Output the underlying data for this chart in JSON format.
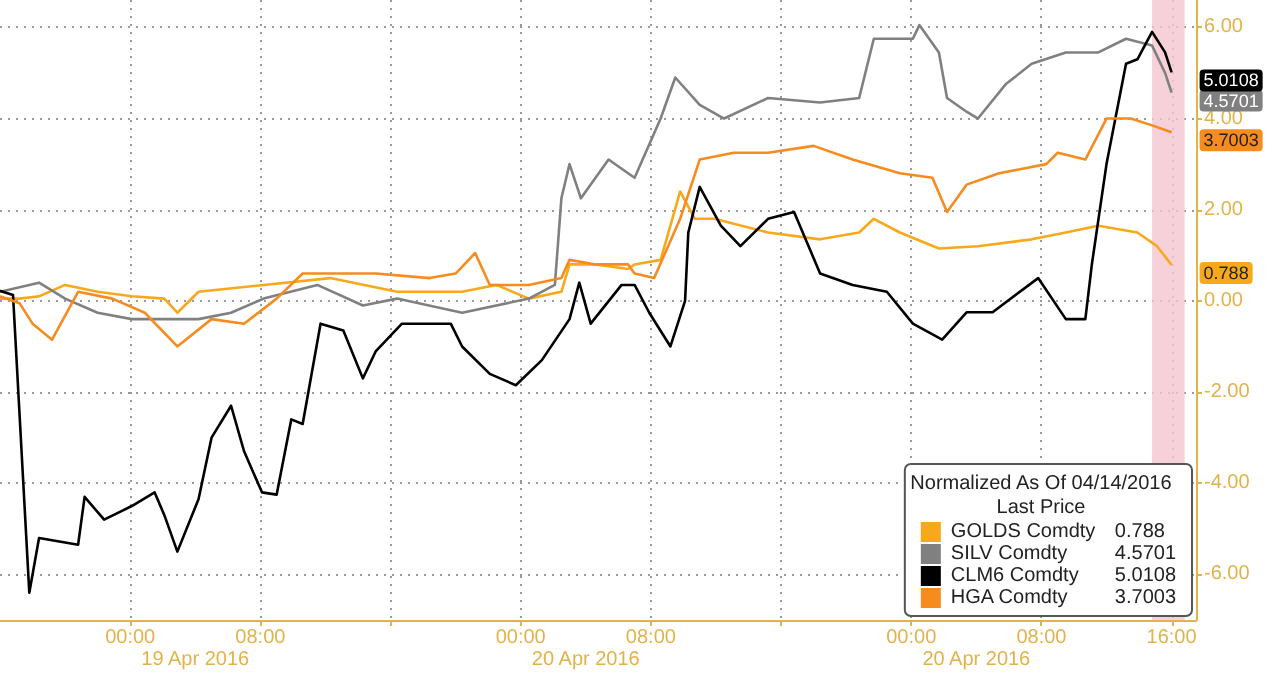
{
  "chart_data": {
    "type": "line",
    "legend_title": "Normalized As Of 04/14/2016\nLast Price",
    "legend": "bottom right",
    "grid": true,
    "annotations": [
      "19 Apr 2016",
      "20 Apr 2016",
      "20 Apr 2016"
    ],
    "xlim": [
      "2016-04-18T16:00",
      "2016-04-21T17:30"
    ],
    "xticks": [
      {
        "value": "2016-04-19T00:00",
        "label": "00:00"
      },
      {
        "value": "2016-04-19T08:00",
        "label": "08:00"
      },
      {
        "value": "2016-04-19T16:00",
        "label": null
      },
      {
        "value": "2016-04-20T00:00",
        "label": "00:00"
      },
      {
        "value": "2016-04-20T08:00",
        "label": "08:00"
      },
      {
        "value": "2016-04-20T16:00",
        "label": null
      },
      {
        "value": "2016-04-21T00:00",
        "label": "00:00"
      },
      {
        "value": "2016-04-21T08:00",
        "label": "08:00"
      },
      {
        "value": "2016-04-21T16:00",
        "label": "16:00"
      }
    ],
    "ylim": [
      -7,
      6.6
    ],
    "yticks": [
      {
        "value": -6,
        "label": "-6.00"
      },
      {
        "value": -4,
        "label": "-4.00"
      },
      {
        "value": -2,
        "label": "-2.00"
      },
      {
        "value": 0,
        "label": "0.00"
      },
      {
        "value": 2,
        "label": "2.00"
      },
      {
        "value": 4,
        "label": "4.00"
      },
      {
        "value": 6,
        "label": "6.00"
      }
    ],
    "bands": [
      {
        "axis": "x",
        "from": "2016-04-21T14:48",
        "to": "2016-04-21T16:48",
        "color": "#f4c6cf"
      }
    ],
    "series": [
      {
        "name": "GOLDS Comdty",
        "color": "#f7a81b",
        "x": [
          "2016-04-18T16:00",
          "2016-04-18T17:12",
          "2016-04-18T18:24",
          "2016-04-18T20:00",
          "2016-04-18T22:00",
          "2016-04-19T00:06",
          "2016-04-19T02:06",
          "2016-04-19T02:54",
          "2016-04-19T04:12",
          "2016-04-19T08:12",
          "2016-04-19T12:18",
          "2016-04-19T16:24",
          "2016-04-19T20:24",
          "2016-04-19T22:30",
          "2016-04-20T00:30",
          "2016-04-20T02:30",
          "2016-04-20T03:00",
          "2016-04-20T04:36",
          "2016-04-20T06:36",
          "2016-04-20T07:00",
          "2016-04-20T08:36",
          "2016-04-20T09:48",
          "2016-04-20T10:42",
          "2016-04-20T11:54",
          "2016-04-20T15:12",
          "2016-04-20T18:24",
          "2016-04-20T20:48",
          "2016-04-20T21:42",
          "2016-04-20T23:18",
          "2016-04-21T01:42",
          "2016-04-21T04:06",
          "2016-04-21T07:24",
          "2016-04-21T09:30",
          "2016-04-21T11:30",
          "2016-04-21T13:54",
          "2016-04-21T15:06",
          "2016-04-21T16:00"
        ],
        "values": [
          0.05,
          0.05,
          0.1,
          0.35,
          0.2,
          0.1,
          0.05,
          -0.26,
          0.2,
          0.35,
          0.5,
          0.2,
          0.2,
          0.35,
          0.05,
          0.2,
          0.8,
          0.8,
          0.7,
          0.8,
          0.9,
          2.4,
          1.8,
          1.8,
          1.5,
          1.35,
          1.5,
          1.8,
          1.5,
          1.15,
          1.2,
          1.35,
          1.5,
          1.65,
          1.5,
          1.2,
          0.788
        ],
        "value_labels": [
          null,
          null,
          null,
          null,
          null,
          null,
          null,
          null,
          null,
          null,
          null,
          null,
          null,
          null,
          null,
          null,
          null,
          null,
          null,
          null,
          null,
          null,
          null,
          null,
          null,
          null,
          null,
          null,
          null,
          null,
          null,
          null,
          null,
          null,
          null,
          null,
          "0.788"
        ]
      },
      {
        "name": "SILV Comdty",
        "color": "#808080",
        "x": [
          "2016-04-18T16:00",
          "2016-04-18T18:24",
          "2016-04-18T20:00",
          "2016-04-18T22:00",
          "2016-04-19T00:06",
          "2016-04-19T02:06",
          "2016-04-19T04:12",
          "2016-04-19T06:12",
          "2016-04-19T08:12",
          "2016-04-19T11:30",
          "2016-04-19T14:18",
          "2016-04-19T16:24",
          "2016-04-19T20:24",
          "2016-04-20T00:30",
          "2016-04-20T02:06",
          "2016-04-20T02:30",
          "2016-04-20T03:00",
          "2016-04-20T03:42",
          "2016-04-20T05:24",
          "2016-04-20T06:36",
          "2016-04-20T07:00",
          "2016-04-20T08:36",
          "2016-04-20T09:30",
          "2016-04-20T11:00",
          "2016-04-20T12:30",
          "2016-04-20T15:12",
          "2016-04-20T18:24",
          "2016-04-20T20:48",
          "2016-04-20T21:42",
          "2016-04-21T00:06",
          "2016-04-21T00:30",
          "2016-04-21T01:42",
          "2016-04-21T02:12",
          "2016-04-21T03:24",
          "2016-04-21T04:06",
          "2016-04-21T05:48",
          "2016-04-21T07:24",
          "2016-04-21T09:30",
          "2016-04-21T11:30",
          "2016-04-21T13:12",
          "2016-04-21T14:48",
          "2016-04-21T15:36",
          "2016-04-21T16:00"
        ],
        "values": [
          0.2,
          0.4,
          0.05,
          -0.26,
          -0.4,
          -0.4,
          -0.4,
          -0.26,
          0.05,
          0.35,
          -0.1,
          0.05,
          -0.26,
          0.05,
          0.35,
          2.25,
          3.0,
          2.25,
          3.1,
          2.8,
          2.7,
          4.0,
          4.9,
          4.3,
          4.0,
          4.45,
          4.35,
          4.45,
          5.75,
          5.75,
          6.05,
          5.45,
          4.45,
          4.15,
          4.0,
          4.75,
          5.2,
          5.45,
          5.45,
          5.75,
          5.6,
          5.0,
          4.5701
        ],
        "value_labels": [
          null,
          null,
          null,
          null,
          null,
          null,
          null,
          null,
          null,
          null,
          null,
          null,
          null,
          null,
          null,
          null,
          null,
          null,
          null,
          null,
          null,
          null,
          null,
          null,
          null,
          null,
          null,
          null,
          null,
          null,
          null,
          null,
          null,
          null,
          null,
          null,
          null,
          null,
          null,
          null,
          null,
          null,
          "4.5701"
        ]
      },
      {
        "name": "CLM6 Comdty",
        "color": "#000000",
        "x": [
          "2016-04-18T16:00",
          "2016-04-18T16:48",
          "2016-04-18T17:48",
          "2016-04-18T18:24",
          "2016-04-18T20:00",
          "2016-04-18T20:48",
          "2016-04-18T21:12",
          "2016-04-18T22:24",
          "2016-04-19T00:06",
          "2016-04-19T01:30",
          "2016-04-19T02:06",
          "2016-04-19T02:54",
          "2016-04-19T04:12",
          "2016-04-19T05:00",
          "2016-04-19T06:12",
          "2016-04-19T07:00",
          "2016-04-19T08:06",
          "2016-04-19T09:00",
          "2016-04-19T09:54",
          "2016-04-19T10:36",
          "2016-04-19T11:42",
          "2016-04-19T13:06",
          "2016-04-19T14:18",
          "2016-04-19T15:06",
          "2016-04-19T16:42",
          "2016-04-19T19:42",
          "2016-04-19T20:24",
          "2016-04-19T22:06",
          "2016-04-19T23:42",
          "2016-04-20T01:18",
          "2016-04-20T03:00",
          "2016-04-20T03:36",
          "2016-04-20T04:18",
          "2016-04-20T06:12",
          "2016-04-20T07:00",
          "2016-04-20T07:54",
          "2016-04-20T09:12",
          "2016-04-20T10:06",
          "2016-04-20T10:18",
          "2016-04-20T11:00",
          "2016-04-20T12:18",
          "2016-04-20T13:30",
          "2016-04-20T15:12",
          "2016-04-20T16:48",
          "2016-04-20T18:24",
          "2016-04-20T20:24",
          "2016-04-20T22:30",
          "2016-04-21T00:06",
          "2016-04-21T01:54",
          "2016-04-21T03:24",
          "2016-04-21T05:00",
          "2016-04-21T07:48",
          "2016-04-21T09:30",
          "2016-04-21T10:42",
          "2016-04-21T11:06",
          "2016-04-21T12:00",
          "2016-04-21T13:12",
          "2016-04-21T13:54",
          "2016-04-21T14:48",
          "2016-04-21T15:36",
          "2016-04-21T16:00"
        ],
        "values": [
          0.22,
          0.13,
          -6.4,
          -5.2,
          -5.3,
          -5.35,
          -4.3,
          -4.8,
          -4.5,
          -4.2,
          -4.7,
          -5.5,
          -4.35,
          -3.0,
          -2.3,
          -3.3,
          -4.2,
          -4.25,
          -2.6,
          -2.7,
          -0.5,
          -0.65,
          -1.7,
          -1.1,
          -0.5,
          -0.5,
          -1.0,
          -1.6,
          -1.85,
          -1.3,
          -0.4,
          0.4,
          -0.5,
          0.35,
          0.35,
          -0.26,
          -1.0,
          0,
          1.5,
          2.5,
          1.65,
          1.2,
          1.8,
          1.95,
          0.6,
          0.35,
          0.2,
          -0.5,
          -0.85,
          -0.25,
          -0.25,
          0.5,
          -0.4,
          -0.4,
          0.8,
          3.0,
          5.2,
          5.3,
          5.9,
          5.45,
          5.0108
        ],
        "value_labels": [
          null,
          null,
          null,
          null,
          null,
          null,
          null,
          null,
          null,
          null,
          null,
          null,
          null,
          null,
          null,
          null,
          null,
          null,
          null,
          null,
          null,
          null,
          null,
          null,
          null,
          null,
          null,
          null,
          null,
          null,
          null,
          null,
          null,
          null,
          null,
          null,
          null,
          null,
          null,
          null,
          null,
          null,
          null,
          null,
          null,
          null,
          null,
          null,
          null,
          null,
          null,
          null,
          null,
          null,
          null,
          null,
          null,
          null,
          null,
          null,
          "5.0108"
        ]
      },
      {
        "name": "HGA Comdty",
        "color": "#f68b1f",
        "x": [
          "2016-04-18T16:00",
          "2016-04-18T17:12",
          "2016-04-18T18:00",
          "2016-04-18T19:12",
          "2016-04-18T20:48",
          "2016-04-18T22:54",
          "2016-04-19T00:54",
          "2016-04-19T02:54",
          "2016-04-19T05:00",
          "2016-04-19T07:00",
          "2016-04-19T09:00",
          "2016-04-19T10:36",
          "2016-04-19T13:06",
          "2016-04-19T15:06",
          "2016-04-19T18:24",
          "2016-04-19T20:00",
          "2016-04-19T21:12",
          "2016-04-19T22:06",
          "2016-04-20T00:30",
          "2016-04-20T02:30",
          "2016-04-20T03:00",
          "2016-04-20T04:36",
          "2016-04-20T06:36",
          "2016-04-20T07:00",
          "2016-04-20T08:12",
          "2016-04-20T09:48",
          "2016-04-20T11:00",
          "2016-04-20T13:06",
          "2016-04-20T15:12",
          "2016-04-20T18:00",
          "2016-04-20T20:24",
          "2016-04-20T23:18",
          "2016-04-21T01:18",
          "2016-04-21T02:12",
          "2016-04-21T03:24",
          "2016-04-21T05:24",
          "2016-04-21T08:18",
          "2016-04-21T09:00",
          "2016-04-21T10:42",
          "2016-04-21T12:00",
          "2016-04-21T13:30",
          "2016-04-21T14:48",
          "2016-04-21T16:00"
        ],
        "values": [
          0.1,
          -0.05,
          -0.5,
          -0.85,
          0.2,
          0.05,
          -0.26,
          -1.0,
          -0.4,
          -0.5,
          0.05,
          0.6,
          0.6,
          0.6,
          0.5,
          0.6,
          1.05,
          0.35,
          0.35,
          0.5,
          0.9,
          0.8,
          0.8,
          0.6,
          0.5,
          1.8,
          3.1,
          3.25,
          3.25,
          3.4,
          3.1,
          2.8,
          2.7,
          1.95,
          2.55,
          2.8,
          3.0,
          3.25,
          3.1,
          4.0,
          4.0,
          3.85,
          3.7003
        ],
        "value_labels": [
          null,
          null,
          null,
          null,
          null,
          null,
          null,
          null,
          null,
          null,
          null,
          null,
          null,
          null,
          null,
          null,
          null,
          null,
          null,
          null,
          null,
          null,
          null,
          null,
          null,
          null,
          null,
          null,
          null,
          null,
          null,
          null,
          null,
          null,
          null,
          null,
          null,
          null,
          null,
          null,
          null,
          null,
          "3.7003"
        ]
      }
    ]
  }
}
